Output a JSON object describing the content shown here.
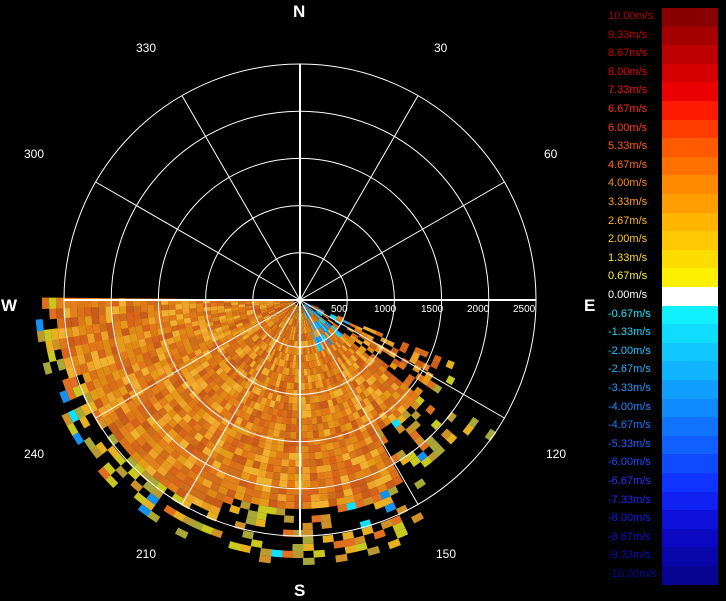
{
  "cardinals": {
    "north": "N",
    "south": "S",
    "east": "E",
    "west": "W"
  },
  "azimuth_labels": [
    "30",
    "60",
    "120",
    "150",
    "210",
    "240",
    "300",
    "330"
  ],
  "range_labels": [
    "500",
    "1000",
    "1500",
    "2000",
    "2500"
  ],
  "legend": [
    {
      "label": "10.00m/s",
      "color": "#8a0000",
      "text": "#b00000"
    },
    {
      "label": "9.33m/s",
      "color": "#a40000",
      "text": "#c00000"
    },
    {
      "label": "8.67m/s",
      "color": "#bc0000",
      "text": "#d00000"
    },
    {
      "label": "8.00m/s",
      "color": "#d40000",
      "text": "#e00000"
    },
    {
      "label": "7.33m/s",
      "color": "#ea0000",
      "text": "#ee1010"
    },
    {
      "label": "6.67m/s",
      "color": "#fc1a00",
      "text": "#ff2a10"
    },
    {
      "label": "6.00m/s",
      "color": "#ff3c00",
      "text": "#ff3c10"
    },
    {
      "label": "5.33m/s",
      "color": "#ff5a00",
      "text": "#ff5a14"
    },
    {
      "label": "4.67m/s",
      "color": "#ff7000",
      "text": "#ff7018"
    },
    {
      "label": "4.00m/s",
      "color": "#ff8a00",
      "text": "#ff8a1c"
    },
    {
      "label": "3.33m/s",
      "color": "#ff9e00",
      "text": "#ffa020"
    },
    {
      "label": "2.67m/s",
      "color": "#ffb400",
      "text": "#ffb424"
    },
    {
      "label": "2.00m/s",
      "color": "#ffc800",
      "text": "#ffc828"
    },
    {
      "label": "1.33m/s",
      "color": "#ffdc00",
      "text": "#ffdc2c"
    },
    {
      "label": "0.67m/s",
      "color": "#fff000",
      "text": "#fff030"
    },
    {
      "label": "0.00m/s",
      "color": "#ffffff",
      "text": "#ffffff"
    },
    {
      "label": "-0.67m/s",
      "color": "#10f0ff",
      "text": "#20e8ff"
    },
    {
      "label": "-1.33m/s",
      "color": "#10dcff",
      "text": "#20d8ff"
    },
    {
      "label": "-2.00m/s",
      "color": "#10c8ff",
      "text": "#20c4ff"
    },
    {
      "label": "-2.67m/s",
      "color": "#10b4ff",
      "text": "#20b0ff"
    },
    {
      "label": "-3.33m/s",
      "color": "#109eff",
      "text": "#209cff"
    },
    {
      "label": "-4.00m/s",
      "color": "#108aff",
      "text": "#2088ff"
    },
    {
      "label": "-4.67m/s",
      "color": "#1074ff",
      "text": "#2074ff"
    },
    {
      "label": "-5.33m/s",
      "color": "#1060ff",
      "text": "#2060ff"
    },
    {
      "label": "-6.00m/s",
      "color": "#104aff",
      "text": "#204cff"
    },
    {
      "label": "-6.67m/s",
      "color": "#1034ff",
      "text": "#2038ff"
    },
    {
      "label": "-7.33m/s",
      "color": "#1020f0",
      "text": "#2024ff"
    },
    {
      "label": "-8.00m/s",
      "color": "#0c10d8",
      "text": "#1818e8"
    },
    {
      "label": "-8.67m/s",
      "color": "#0a08c0",
      "text": "#1010d0"
    },
    {
      "label": "-9.33m/s",
      "color": "#0806a8",
      "text": "#0c0cb8"
    },
    {
      "label": "-10.00m/s",
      "color": "#060490",
      "text": "#0808a0"
    }
  ]
}
